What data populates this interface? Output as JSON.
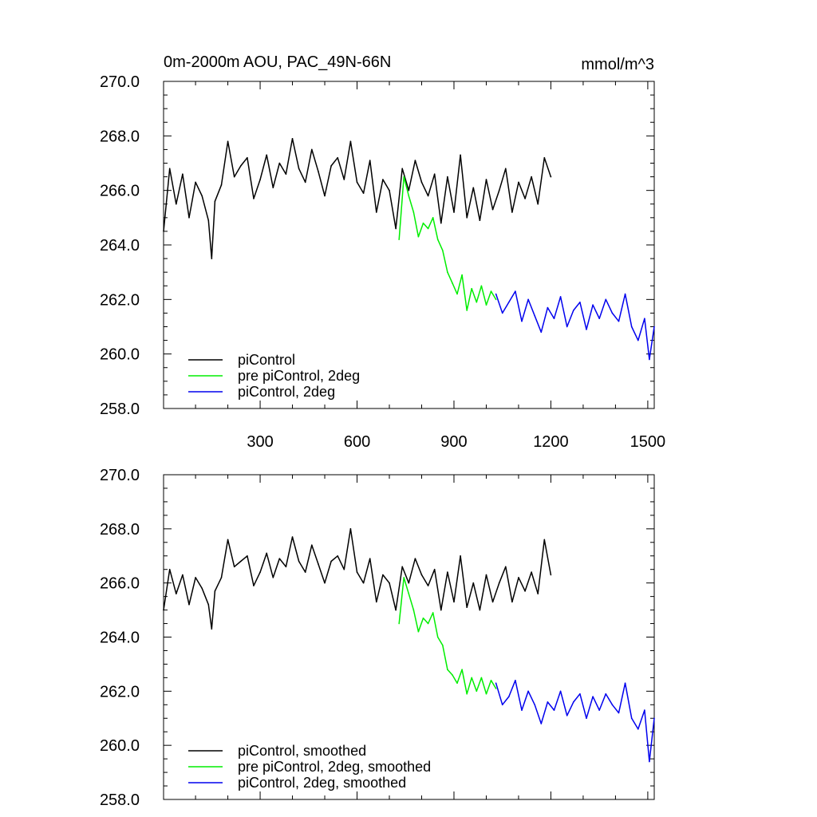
{
  "chart_data": [
    {
      "type": "line",
      "title": "0m-2000m AOU, PAC_49N-66N",
      "units": "mmol/m^3",
      "xlim": [
        1,
        1520
      ],
      "ylim": [
        258,
        270
      ],
      "xticks": [
        300,
        600,
        900,
        1200,
        1500
      ],
      "xtick_labels": [
        "300",
        "600",
        "900",
        "1200",
        "1500"
      ],
      "yticks": [
        258,
        260,
        262,
        264,
        266,
        268,
        270
      ],
      "ytick_labels": [
        "258.0",
        "260.0",
        "262.0",
        "264.0",
        "266.0",
        "268.0",
        "270.0"
      ],
      "legend_position": "bottom-left",
      "series": [
        {
          "name": "piControl",
          "color": "#000000",
          "x": [
            1,
            20,
            40,
            60,
            80,
            100,
            120,
            140,
            150,
            160,
            180,
            200,
            220,
            240,
            260,
            280,
            300,
            320,
            340,
            360,
            380,
            400,
            420,
            440,
            460,
            480,
            500,
            520,
            540,
            560,
            580,
            600,
            620,
            640,
            660,
            680,
            700,
            720,
            740,
            760,
            780,
            800,
            820,
            840,
            860,
            880,
            900,
            920,
            940,
            960,
            980,
            1000,
            1020,
            1040,
            1060,
            1080,
            1100,
            1120,
            1140,
            1160,
            1180,
            1200
          ],
          "values": [
            264.5,
            266.8,
            265.5,
            266.6,
            265.0,
            266.3,
            265.8,
            264.9,
            263.5,
            265.6,
            266.2,
            267.8,
            266.5,
            266.9,
            267.2,
            265.7,
            266.4,
            267.3,
            266.1,
            267.0,
            266.6,
            267.9,
            266.8,
            266.3,
            267.5,
            266.7,
            265.8,
            266.9,
            267.2,
            266.4,
            267.8,
            266.3,
            265.9,
            267.1,
            265.2,
            266.4,
            266.0,
            264.6,
            266.8,
            266.0,
            267.1,
            266.3,
            265.8,
            266.6,
            264.8,
            266.5,
            265.2,
            267.3,
            265.0,
            266.1,
            264.9,
            266.4,
            265.3,
            266.0,
            266.8,
            265.2,
            266.3,
            265.7,
            266.5,
            265.5,
            267.2,
            266.5
          ]
        },
        {
          "name": "pre piControl, 2deg",
          "color": "#00ee00",
          "x": [
            730,
            745,
            760,
            775,
            790,
            805,
            820,
            835,
            850,
            865,
            880,
            895,
            910,
            925,
            940,
            955,
            970,
            985,
            1000,
            1015,
            1030
          ],
          "values": [
            264.2,
            266.5,
            265.8,
            265.2,
            264.3,
            264.8,
            264.6,
            265.0,
            264.2,
            263.8,
            263.0,
            262.6,
            262.2,
            262.9,
            261.6,
            262.4,
            261.9,
            262.5,
            261.8,
            262.3,
            262.0
          ]
        },
        {
          "name": "piControl, 2deg",
          "color": "#0000ee",
          "x": [
            1030,
            1050,
            1070,
            1090,
            1110,
            1130,
            1150,
            1170,
            1190,
            1210,
            1230,
            1250,
            1270,
            1290,
            1310,
            1330,
            1350,
            1370,
            1390,
            1410,
            1430,
            1450,
            1470,
            1490,
            1505,
            1520
          ],
          "values": [
            262.2,
            261.5,
            261.9,
            262.3,
            261.2,
            262.0,
            261.4,
            260.8,
            261.7,
            261.3,
            262.1,
            261.0,
            261.6,
            261.9,
            260.9,
            261.8,
            261.3,
            262.0,
            261.5,
            261.2,
            262.2,
            261.0,
            260.5,
            261.3,
            259.8,
            261.0
          ]
        }
      ]
    },
    {
      "type": "line",
      "xlim": [
        1,
        1520
      ],
      "ylim": [
        258,
        270
      ],
      "xticks": [
        300,
        600,
        900,
        1200,
        1500
      ],
      "yticks": [
        258,
        260,
        262,
        264,
        266,
        268,
        270
      ],
      "ytick_labels": [
        "258.0",
        "260.0",
        "262.0",
        "264.0",
        "266.0",
        "268.0",
        "270.0"
      ],
      "legend_position": "bottom-left",
      "series": [
        {
          "name": "piControl, smoothed",
          "color": "#000000",
          "x": [
            1,
            20,
            40,
            60,
            80,
            100,
            120,
            140,
            150,
            160,
            180,
            200,
            220,
            240,
            260,
            280,
            300,
            320,
            340,
            360,
            380,
            400,
            420,
            440,
            460,
            480,
            500,
            520,
            540,
            560,
            580,
            600,
            620,
            640,
            660,
            680,
            700,
            720,
            740,
            760,
            780,
            800,
            820,
            840,
            860,
            880,
            900,
            920,
            940,
            960,
            980,
            1000,
            1020,
            1040,
            1060,
            1080,
            1100,
            1120,
            1140,
            1160,
            1180,
            1200
          ],
          "values": [
            265.0,
            266.5,
            265.6,
            266.3,
            265.2,
            266.2,
            265.8,
            265.2,
            264.3,
            265.7,
            266.2,
            267.6,
            266.6,
            266.8,
            267.0,
            265.9,
            266.4,
            267.1,
            266.2,
            266.9,
            266.6,
            267.7,
            266.8,
            266.4,
            267.4,
            266.7,
            266.0,
            266.8,
            267.0,
            266.5,
            268.0,
            266.4,
            266.0,
            266.9,
            265.3,
            266.3,
            266.0,
            265.0,
            266.6,
            266.0,
            266.9,
            266.3,
            265.9,
            266.5,
            265.0,
            266.4,
            265.3,
            267.0,
            265.1,
            266.0,
            265.0,
            266.3,
            265.3,
            266.0,
            266.6,
            265.3,
            266.2,
            265.7,
            266.4,
            265.6,
            267.6,
            266.3
          ]
        },
        {
          "name": "pre piControl, 2deg, smoothed",
          "color": "#00ee00",
          "x": [
            730,
            745,
            760,
            775,
            790,
            805,
            820,
            835,
            850,
            865,
            880,
            895,
            910,
            925,
            940,
            955,
            970,
            985,
            1000,
            1015,
            1030
          ],
          "values": [
            264.5,
            266.2,
            265.6,
            265.0,
            264.2,
            264.7,
            264.5,
            264.9,
            264.0,
            263.7,
            262.8,
            262.6,
            262.3,
            262.8,
            261.9,
            262.5,
            262.0,
            262.5,
            261.9,
            262.4,
            262.1
          ]
        },
        {
          "name": "piControl, 2deg, smoothed",
          "color": "#0000ee",
          "x": [
            1030,
            1050,
            1070,
            1090,
            1110,
            1130,
            1150,
            1170,
            1190,
            1210,
            1230,
            1250,
            1270,
            1290,
            1310,
            1330,
            1350,
            1370,
            1390,
            1410,
            1430,
            1450,
            1470,
            1490,
            1505,
            1520
          ],
          "values": [
            262.3,
            261.5,
            261.8,
            262.4,
            261.3,
            262.0,
            261.5,
            260.8,
            261.6,
            261.3,
            262.0,
            261.1,
            261.6,
            261.9,
            261.0,
            261.8,
            261.3,
            261.9,
            261.5,
            261.2,
            262.3,
            261.0,
            260.6,
            261.3,
            259.4,
            261.0
          ]
        }
      ]
    }
  ]
}
